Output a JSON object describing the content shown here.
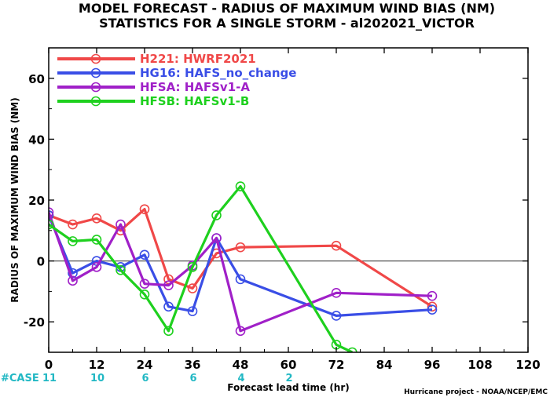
{
  "chart_data": {
    "type": "line",
    "title": "MODEL FORECAST - RADIUS OF MAXIMUM WIND BIAS (NM)",
    "subtitle": "STATISTICS FOR A SINGLE STORM - al202021_VICTOR",
    "xlabel": "Forecast lead time (hr)",
    "ylabel": "RADIUS OF MAXIMUM WIND BIAS (NM)",
    "xlim": [
      0,
      120
    ],
    "ylim": [
      -30,
      70
    ],
    "xticks": [
      0,
      12,
      24,
      36,
      48,
      60,
      72,
      84,
      96,
      108,
      120
    ],
    "yticks": [
      -20,
      0,
      20,
      40,
      60
    ],
    "zero_line": true,
    "legend_position": "top-left",
    "series": [
      {
        "name": "H221: HWRF2021",
        "color": "#f04848",
        "x": [
          0,
          6,
          12,
          18,
          24,
          30,
          36,
          42,
          48,
          72,
          96
        ],
        "y": [
          15,
          12,
          14,
          10,
          17,
          -6,
          -9,
          2.5,
          4.5,
          5,
          -15
        ]
      },
      {
        "name": "HG16: HAFS_no_change",
        "color": "#3a4ee6",
        "x": [
          0,
          6,
          12,
          18,
          24,
          30,
          36,
          42,
          48,
          72,
          96
        ],
        "y": [
          15,
          -4,
          0,
          -2,
          2,
          -15,
          -16.5,
          7.5,
          -6,
          -18,
          -16
        ]
      },
      {
        "name": "HFSA: HAFSv1-A",
        "color": "#a020c8",
        "x": [
          0,
          6,
          12,
          18,
          24,
          30,
          36,
          42,
          48,
          72,
          96
        ],
        "y": [
          16,
          -6.5,
          -2,
          12,
          -7.5,
          -8,
          -1.5,
          7.5,
          -23,
          -10.5,
          -11.5
        ]
      },
      {
        "name": "HFSB: HAFSv1-B",
        "color": "#1ed01e",
        "x": [
          0,
          6,
          12,
          18,
          24,
          30,
          36,
          42,
          48,
          72,
          76
        ],
        "y": [
          12,
          6.5,
          7,
          -3,
          -11,
          -23,
          -2,
          15,
          24.5,
          -27.5,
          -30
        ]
      }
    ],
    "case_label": "#CASE",
    "case_counts": [
      {
        "x": 0,
        "label": "11"
      },
      {
        "x": 12,
        "label": "10"
      },
      {
        "x": 24,
        "label": "6"
      },
      {
        "x": 36,
        "label": "6"
      },
      {
        "x": 48,
        "label": "4"
      },
      {
        "x": 60,
        "label": "2"
      }
    ],
    "credit": "Hurricane project - NOAA/NCEP/EMC"
  }
}
